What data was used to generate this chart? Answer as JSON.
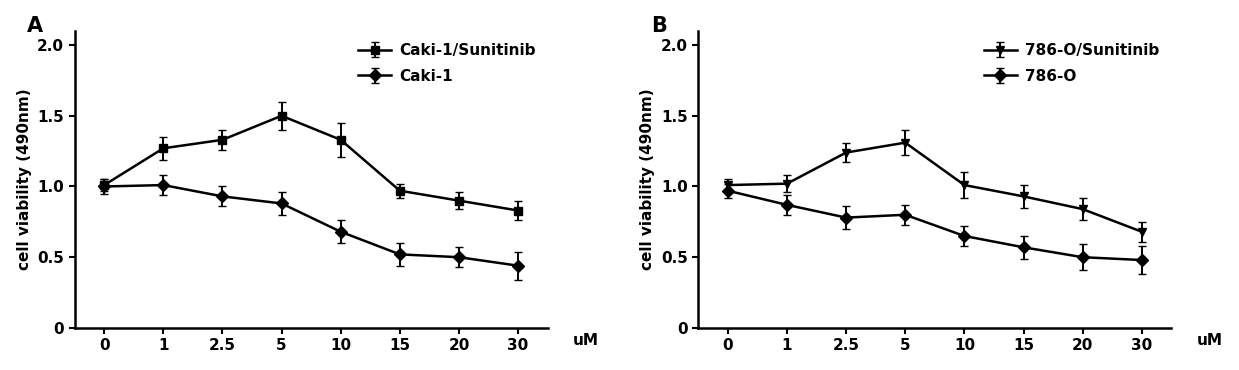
{
  "panel_A": {
    "label": "A",
    "x_labels": [
      "0",
      "1",
      "2.5",
      "5",
      "10",
      "15",
      "20",
      "30"
    ],
    "series1": {
      "label": "Caki-1/Sunitinib",
      "y": [
        1.01,
        1.27,
        1.33,
        1.5,
        1.33,
        0.97,
        0.9,
        0.83
      ],
      "yerr": [
        0.04,
        0.08,
        0.07,
        0.1,
        0.12,
        0.05,
        0.06,
        0.07
      ],
      "marker": "s"
    },
    "series2": {
      "label": "Caki-1",
      "y": [
        1.0,
        1.01,
        0.93,
        0.88,
        0.68,
        0.52,
        0.5,
        0.44
      ],
      "yerr": [
        0.05,
        0.07,
        0.07,
        0.08,
        0.08,
        0.08,
        0.07,
        0.1
      ],
      "marker": "D"
    },
    "ylabel": "cell viability (490nm)",
    "xlabel": "uM",
    "ylim": [
      0,
      2.1
    ],
    "yticks": [
      0,
      0.5,
      1.0,
      1.5,
      2.0
    ],
    "ytick_labels": [
      "0",
      "0.5",
      "1.0",
      "1.5",
      "2.0"
    ]
  },
  "panel_B": {
    "label": "B",
    "x_labels": [
      "0",
      "1",
      "2.5",
      "5",
      "10",
      "15",
      "20",
      "30"
    ],
    "series1": {
      "label": "786-O/Sunitinib",
      "y": [
        1.01,
        1.02,
        1.24,
        1.31,
        1.01,
        0.93,
        0.84,
        0.68
      ],
      "yerr": [
        0.04,
        0.06,
        0.07,
        0.09,
        0.09,
        0.08,
        0.08,
        0.07
      ],
      "marker": "v"
    },
    "series2": {
      "label": "786-O",
      "y": [
        0.97,
        0.87,
        0.78,
        0.8,
        0.65,
        0.57,
        0.5,
        0.48
      ],
      "yerr": [
        0.05,
        0.07,
        0.08,
        0.07,
        0.07,
        0.08,
        0.09,
        0.1
      ],
      "marker": "D"
    },
    "ylabel": "cell viability (490nm)",
    "xlabel": "uM",
    "ylim": [
      0,
      2.1
    ],
    "yticks": [
      0,
      0.5,
      1.0,
      1.5,
      2.0
    ],
    "ytick_labels": [
      "0",
      "0.5",
      "1.0",
      "1.5",
      "2.0"
    ]
  },
  "line_color": "#000000",
  "linewidth": 1.8,
  "markersize": 6,
  "capsize": 3,
  "elinewidth": 1.4,
  "font_size": 11,
  "label_fontsize": 11,
  "panel_label_fontsize": 15
}
